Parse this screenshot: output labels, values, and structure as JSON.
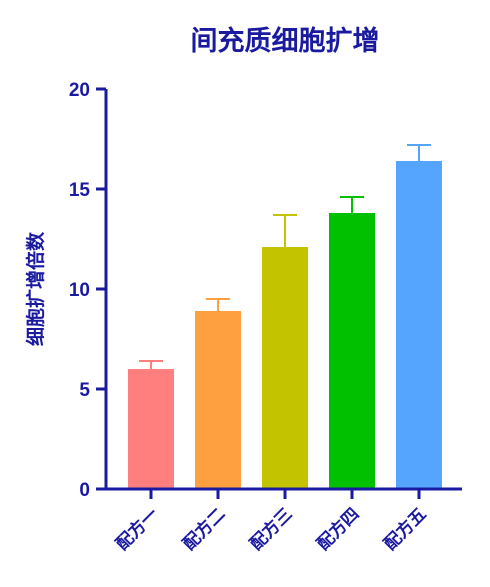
{
  "chart_data": {
    "type": "bar",
    "title": "间充质细胞扩增",
    "xlabel": "",
    "ylabel": "细胞扩增倍数",
    "ylim": [
      0,
      20
    ],
    "yticks": [
      0,
      5,
      10,
      15,
      20
    ],
    "categories": [
      "配方一",
      "配方二",
      "配方三",
      "配方四",
      "配方五"
    ],
    "values": [
      6.0,
      8.9,
      12.1,
      13.8,
      16.4
    ],
    "errors": [
      0.4,
      0.6,
      1.6,
      0.8,
      0.8
    ],
    "colors": [
      "#ff7f7f",
      "#ffa040",
      "#c3c300",
      "#00c000",
      "#55a5ff"
    ],
    "errorbar_colors": [
      "#ff7f7f",
      "#ffa040",
      "#c3c300",
      "#00c000",
      "#55a5ff"
    ],
    "axis_color": "#1a1aa0",
    "grid": false,
    "legend": "none"
  }
}
